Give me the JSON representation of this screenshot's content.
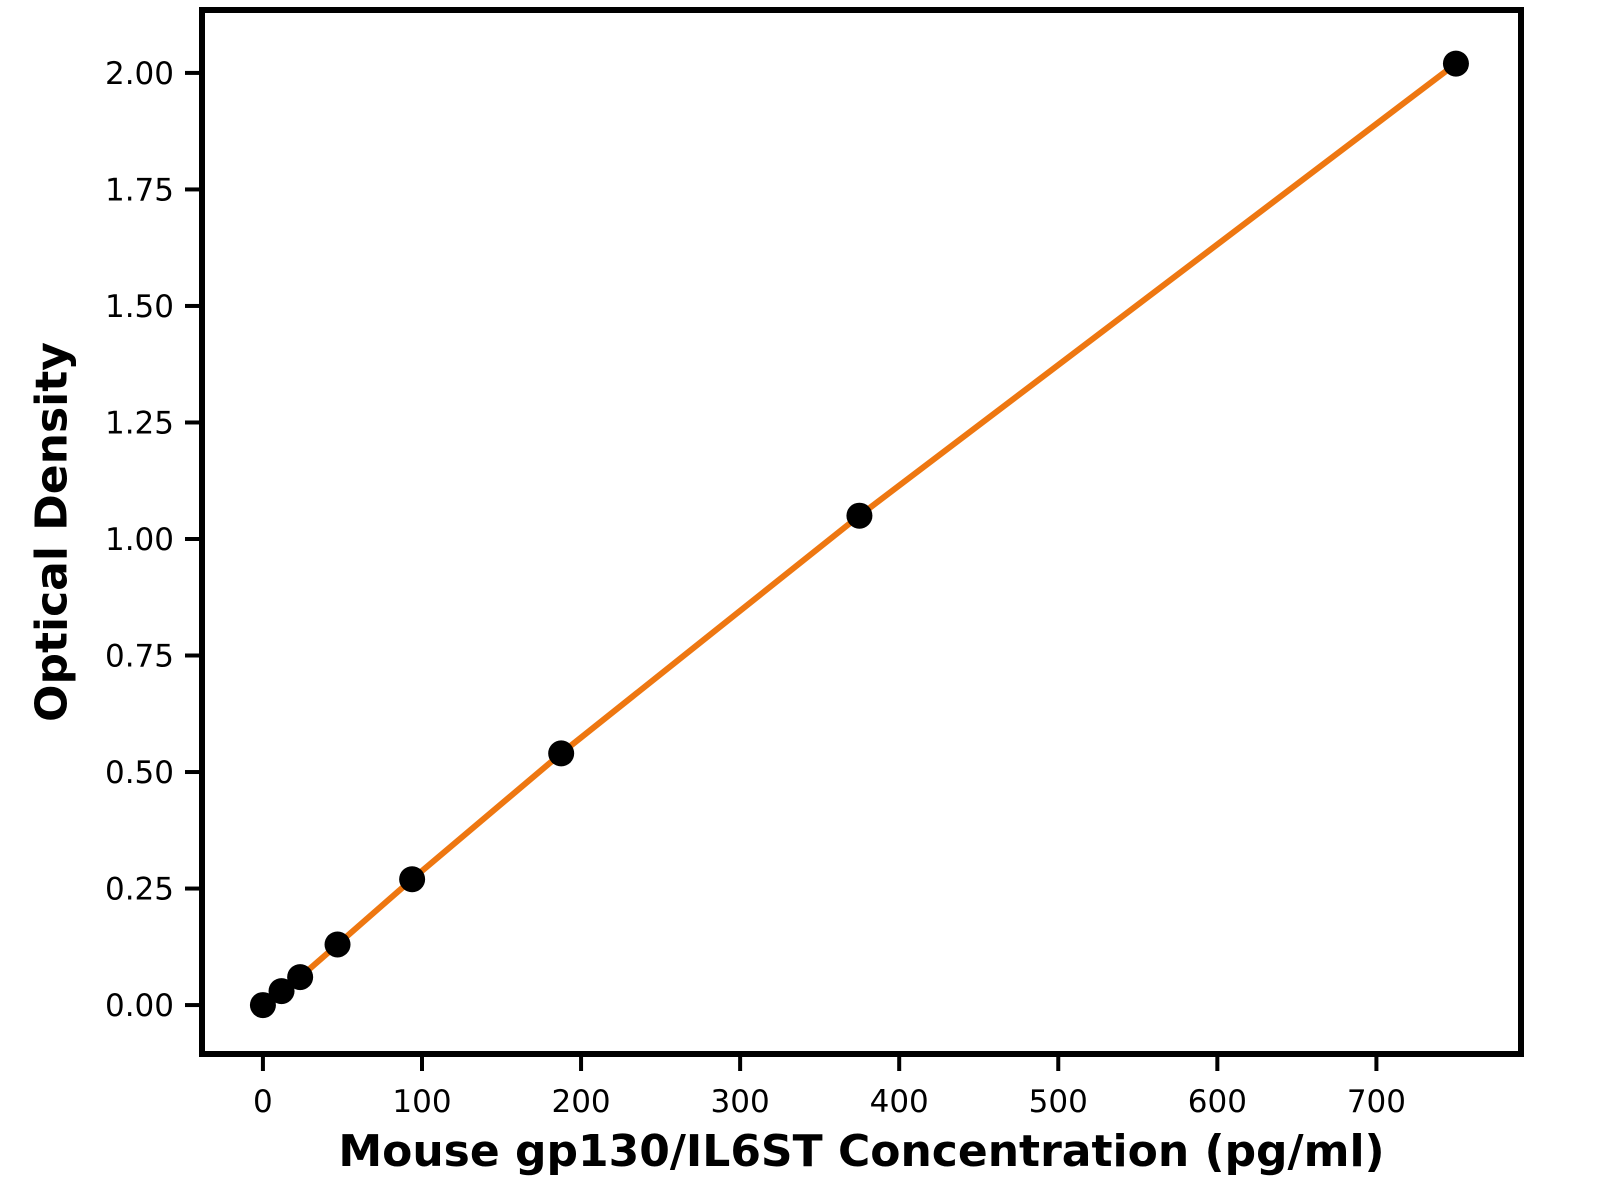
{
  "chart_data": {
    "type": "scatter",
    "title": "",
    "xlabel": "Mouse gp130/IL6ST Concentration (pg/ml)",
    "ylabel": "Optical Density",
    "x": [
      0,
      11.7,
      23.4,
      46.9,
      93.8,
      187.5,
      375,
      750
    ],
    "y": [
      0.0,
      0.03,
      0.06,
      0.13,
      0.27,
      0.54,
      1.05,
      2.02
    ],
    "x_ticks": [
      0,
      100,
      200,
      300,
      400,
      500,
      600,
      700
    ],
    "y_ticks": [
      0.0,
      0.25,
      0.5,
      0.75,
      1.0,
      1.25,
      1.5,
      1.75,
      2.0
    ],
    "y_tick_decimals": 2,
    "xlim": [
      -38.3,
      790.9
    ],
    "ylim": [
      -0.105,
      2.135
    ],
    "grid": false,
    "legend": null,
    "line_color": "#ee7711",
    "marker_color": "#000000",
    "axis_color": "#000000",
    "background_color": "#ffffff"
  }
}
